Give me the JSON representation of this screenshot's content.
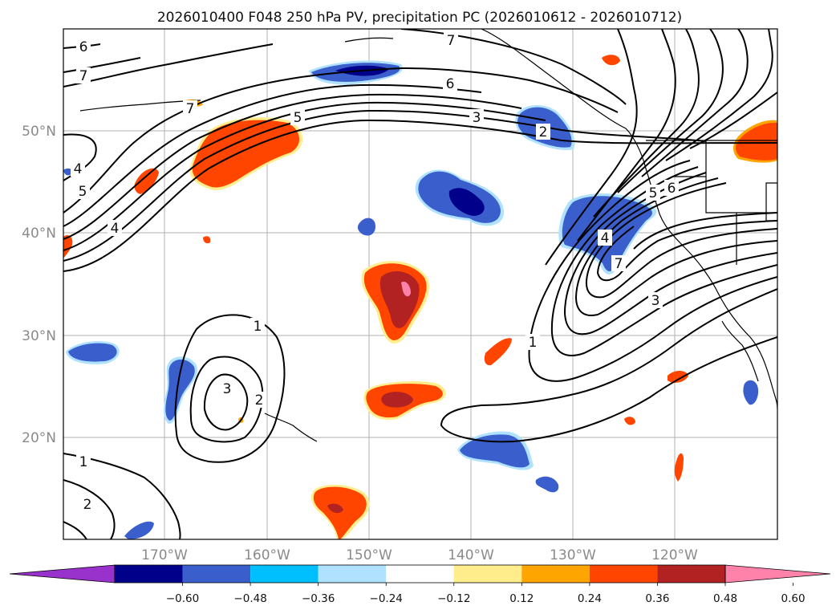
{
  "title": "2026010400 F048 250 hPa PV, precipitation PC (2026010612 - 2026010712)",
  "lat_labels": [
    "50°N",
    "40°N",
    "30°N",
    "20°N"
  ],
  "lon_labels": [
    "170°W",
    "160°W",
    "150°W",
    "140°W",
    "130°W",
    "120°W"
  ],
  "colorbar": {
    "colors": [
      "#9932cc",
      "#00008b",
      "#3a5fcd",
      "#00bfff",
      "#b0e2ff",
      "#ffffff",
      "#ffec8b",
      "#ffa500",
      "#ff4500",
      "#b22222",
      "#ff82ab"
    ],
    "ticks": [
      "−0.60",
      "−0.48",
      "−0.36",
      "−0.24",
      "−0.12",
      "0.12",
      "0.24",
      "0.36",
      "0.48",
      "0.60"
    ]
  },
  "contour_labels": {
    "c1": "6",
    "c2": "7",
    "c3": "7",
    "c4": "7",
    "c5": "6",
    "c6": "5",
    "c7": "3",
    "c8": "2",
    "c9": "4",
    "c10": "5",
    "c11": "4",
    "c12": "1",
    "c13": "3",
    "c14": "2",
    "c15": "1",
    "c16": "1",
    "c17": "2",
    "c18": "5",
    "c19": "6",
    "c20": "4",
    "c21": "7",
    "c22": "3"
  }
}
